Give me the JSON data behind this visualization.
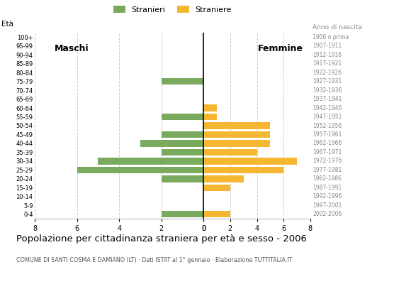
{
  "age_groups": [
    "100+",
    "95-99",
    "90-94",
    "85-89",
    "80-84",
    "75-79",
    "70-74",
    "65-69",
    "60-64",
    "55-59",
    "50-54",
    "45-49",
    "40-44",
    "35-39",
    "30-34",
    "25-29",
    "20-24",
    "15-19",
    "10-14",
    "5-9",
    "0-4"
  ],
  "birth_years": [
    "1906 o prima",
    "1907-1911",
    "1912-1916",
    "1917-1921",
    "1922-1926",
    "1927-1931",
    "1932-1936",
    "1937-1941",
    "1942-1946",
    "1947-1951",
    "1952-1956",
    "1957-1961",
    "1962-1966",
    "1967-1971",
    "1972-1976",
    "1977-1981",
    "1982-1986",
    "1987-1991",
    "1992-1996",
    "1997-2001",
    "2002-2006"
  ],
  "males": [
    0,
    0,
    0,
    0,
    0,
    2,
    0,
    0,
    0,
    2,
    0,
    2,
    3,
    2,
    5,
    6,
    2,
    0,
    0,
    0,
    2
  ],
  "females": [
    0,
    0,
    0,
    0,
    0,
    0,
    0,
    0,
    1,
    1,
    5,
    5,
    5,
    4,
    7,
    6,
    3,
    2,
    0,
    0,
    2
  ],
  "male_color": "#7aaa5e",
  "female_color": "#f5b731",
  "axis_max": 8,
  "title": "Popolazione per cittadinanza straniera per età e sesso - 2006",
  "subtitle": "COMUNE DI SANTI COSMA E DAMIANO (LT) · Dati ISTAT al 1° gennaio · Elaborazione TUTTITALIA.IT",
  "legend_male": "Stranieri",
  "legend_female": "Straniere",
  "ylabel_left": "Età",
  "label_males": "Maschi",
  "label_females": "Femmine",
  "anno_label": "Anno di nascita",
  "background_color": "#ffffff",
  "grid_color": "#cccccc",
  "bar_height": 0.75
}
